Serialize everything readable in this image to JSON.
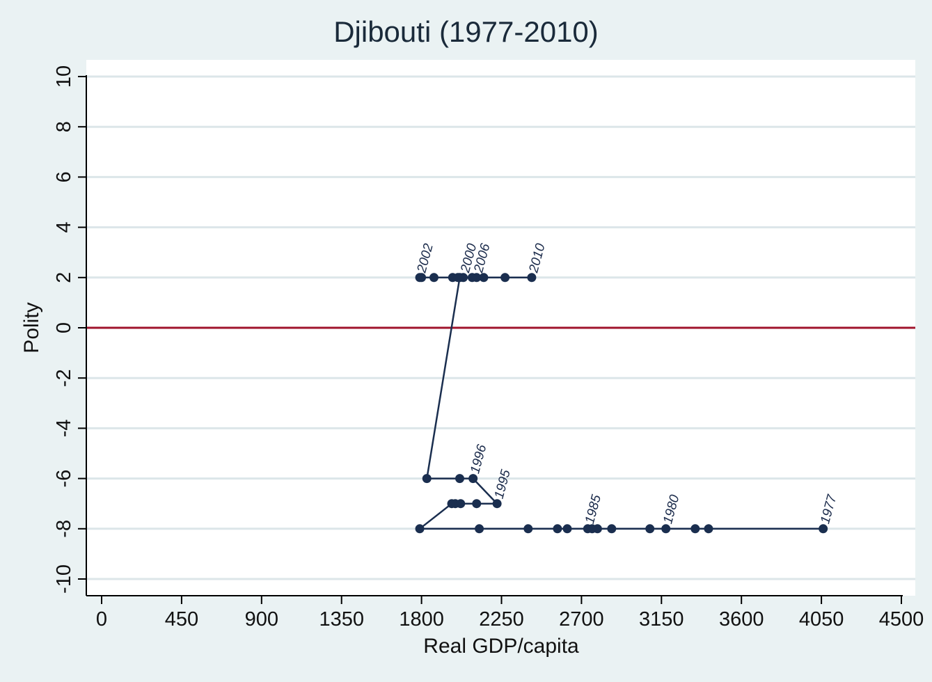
{
  "chart_data": {
    "type": "scatter",
    "title": "Djibouti (1977-2010)",
    "xlabel": "Real GDP/capita",
    "ylabel": "Polity",
    "xlim": [
      0,
      4500
    ],
    "ylim": [
      -10,
      10
    ],
    "xticks": [
      0,
      450,
      900,
      1350,
      1800,
      2250,
      2700,
      3150,
      3600,
      4050,
      4500
    ],
    "yticks": [
      10,
      8,
      6,
      4,
      2,
      0,
      -2,
      -4,
      -6,
      -8,
      -10
    ],
    "grid": true,
    "reference_line": {
      "y": 0,
      "color": "#a0142c"
    },
    "colors": {
      "series": "#1a2e4f",
      "grid": "#dce6e9",
      "background": "#ffffff",
      "frame": "#eaf2f3"
    },
    "series": [
      {
        "points": [
          {
            "year": 1977,
            "x": 4060,
            "y": -8
          },
          {
            "year": 1978,
            "x": 3415,
            "y": -8
          },
          {
            "year": 1979,
            "x": 3340,
            "y": -8
          },
          {
            "year": 1980,
            "x": 3175,
            "y": -8
          },
          {
            "year": 1981,
            "x": 3085,
            "y": -8
          },
          {
            "year": 1982,
            "x": 2870,
            "y": -8
          },
          {
            "year": 1983,
            "x": 2790,
            "y": -8
          },
          {
            "year": 1984,
            "x": 2760,
            "y": -8
          },
          {
            "year": 1985,
            "x": 2735,
            "y": -8
          },
          {
            "year": 1986,
            "x": 2620,
            "y": -8
          },
          {
            "year": 1987,
            "x": 2565,
            "y": -8
          },
          {
            "year": 1988,
            "x": 2400,
            "y": -8
          },
          {
            "year": 1989,
            "x": 2125,
            "y": -8
          },
          {
            "year": 1990,
            "x": 1790,
            "y": -8
          },
          {
            "year": 1991,
            "x": 1970,
            "y": -7
          },
          {
            "year": 1992,
            "x": 1990,
            "y": -7
          },
          {
            "year": 1993,
            "x": 2020,
            "y": -7
          },
          {
            "year": 1994,
            "x": 2110,
            "y": -7
          },
          {
            "year": 1995,
            "x": 2225,
            "y": -7
          },
          {
            "year": 1996,
            "x": 2090,
            "y": -6
          },
          {
            "year": 1997,
            "x": 2015,
            "y": -6
          },
          {
            "year": 1998,
            "x": 1830,
            "y": -6
          },
          {
            "year": 1999,
            "x": 2015,
            "y": 2
          },
          {
            "year": 2000,
            "x": 2035,
            "y": 2
          },
          {
            "year": 2001,
            "x": 1800,
            "y": 2
          },
          {
            "year": 2002,
            "x": 1790,
            "y": 2
          },
          {
            "year": 2003,
            "x": 1870,
            "y": 2
          },
          {
            "year": 2004,
            "x": 1975,
            "y": 2
          },
          {
            "year": 2005,
            "x": 2005,
            "y": 2
          },
          {
            "year": 2006,
            "x": 2110,
            "y": 2
          },
          {
            "year": 2007,
            "x": 2150,
            "y": 2
          },
          {
            "year": 2008,
            "x": 2085,
            "y": 2
          },
          {
            "year": 2009,
            "x": 2270,
            "y": 2
          },
          {
            "year": 2010,
            "x": 2420,
            "y": 2
          }
        ]
      }
    ],
    "annotations": [
      {
        "text": "1977",
        "year": 1977
      },
      {
        "text": "1980",
        "year": 1980
      },
      {
        "text": "1985",
        "year": 1985
      },
      {
        "text": "1995",
        "year": 1995
      },
      {
        "text": "1996",
        "year": 1996
      },
      {
        "text": "2000",
        "year": 2000
      },
      {
        "text": "2002",
        "year": 2002
      },
      {
        "text": "2006",
        "year": 2006
      },
      {
        "text": "2010",
        "year": 2010
      }
    ]
  }
}
